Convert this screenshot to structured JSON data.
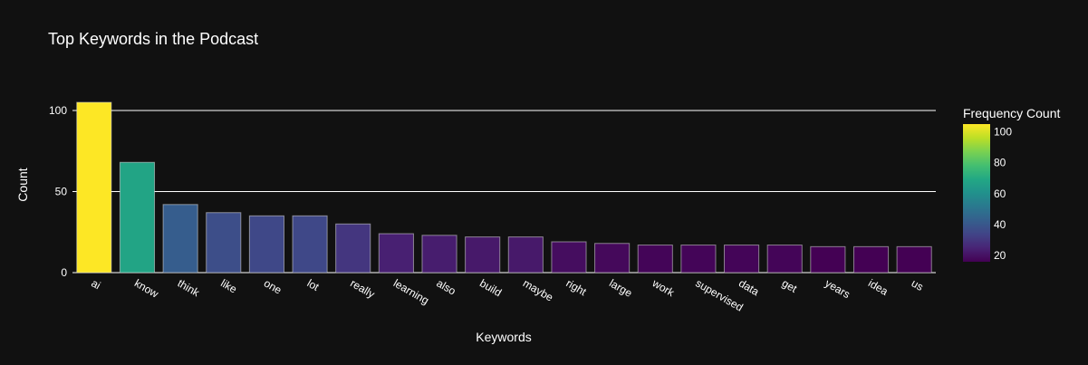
{
  "chart_data": {
    "type": "bar",
    "title": "Top Keywords in the Podcast",
    "xlabel": "Keywords",
    "ylabel": "Count",
    "ylim": [
      0,
      105
    ],
    "yticks": [
      0,
      50,
      100
    ],
    "grid": true,
    "categories": [
      "ai",
      "know",
      "think",
      "like",
      "one",
      "lot",
      "really",
      "learning",
      "also",
      "build",
      "maybe",
      "right",
      "large",
      "work",
      "supervised",
      "data",
      "get",
      "years",
      "idea",
      "us"
    ],
    "values": [
      105,
      68,
      42,
      37,
      35,
      35,
      30,
      24,
      23,
      22,
      22,
      19,
      18,
      17,
      17,
      17,
      17,
      16,
      16,
      16
    ],
    "colorbar": {
      "title": "Frequency Count",
      "ticks": [
        20,
        40,
        60,
        80,
        100
      ],
      "range": [
        16,
        105
      ],
      "colorscale": "Viridis",
      "placement": "right"
    }
  }
}
